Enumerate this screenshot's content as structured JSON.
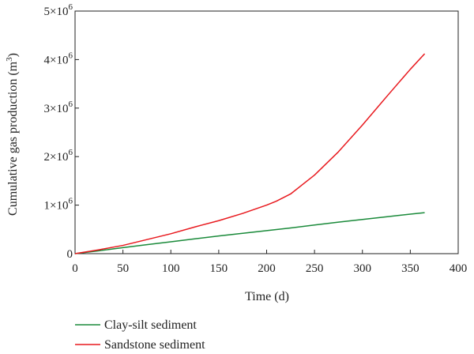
{
  "chart_data": {
    "type": "line",
    "xlabel": "Time (d)",
    "ylabel_main": "Cumulative gas production (m",
    "ylabel_sup": "3",
    "ylabel_close": ")",
    "xlim": [
      0,
      400
    ],
    "ylim": [
      0,
      5000000
    ],
    "xticks": [
      "0",
      "50",
      "100",
      "150",
      "200",
      "250",
      "300",
      "350",
      "400"
    ],
    "xtick_values": [
      0,
      50,
      100,
      150,
      200,
      250,
      300,
      350,
      400
    ],
    "yticks": [
      {
        "value": 0,
        "base": "0",
        "exp": ""
      },
      {
        "value": 1000000,
        "base": "1×10",
        "exp": "6"
      },
      {
        "value": 2000000,
        "base": "2×10",
        "exp": "6"
      },
      {
        "value": 3000000,
        "base": "3×10",
        "exp": "6"
      },
      {
        "value": 4000000,
        "base": "4×10",
        "exp": "6"
      },
      {
        "value": 5000000,
        "base": "5×10",
        "exp": "6"
      }
    ],
    "grid": false,
    "legend_position": "bottom-left, below plot",
    "series": [
      {
        "name": "Clay-silt sediment",
        "color": "#1a8a3a",
        "x": [
          0,
          25,
          50,
          75,
          100,
          125,
          150,
          175,
          200,
          225,
          250,
          275,
          300,
          325,
          350,
          365
        ],
        "y": [
          0,
          60000,
          125000,
          185000,
          245000,
          305000,
          365000,
          420000,
          475000,
          530000,
          590000,
          650000,
          705000,
          760000,
          815000,
          845000
        ]
      },
      {
        "name": "Sandstone sediment",
        "color": "#e8191e",
        "x": [
          0,
          25,
          50,
          75,
          100,
          125,
          150,
          175,
          200,
          210,
          225,
          250,
          275,
          300,
          325,
          350,
          365
        ],
        "y": [
          0,
          80000,
          170000,
          290000,
          410000,
          550000,
          680000,
          830000,
          1000000,
          1080000,
          1230000,
          1620000,
          2100000,
          2650000,
          3230000,
          3800000,
          4120000
        ]
      }
    ]
  }
}
